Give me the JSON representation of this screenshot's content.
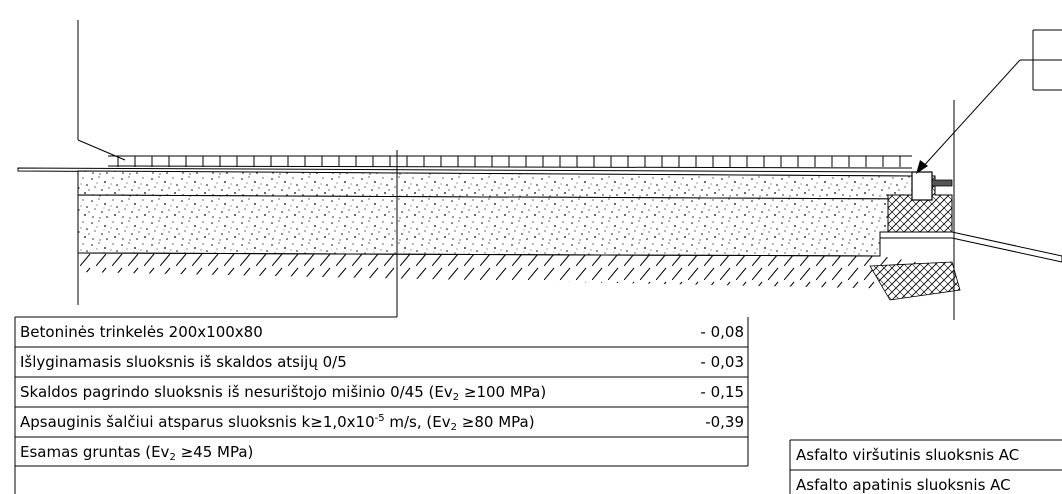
{
  "layers": [
    {
      "label": "Betoninės trinkelės 200x100x80",
      "value": "- 0,08"
    },
    {
      "label": "Išlyginamasis sluoksnis iš skaldos atsijų  0/5",
      "value": "- 0,03"
    },
    {
      "label_parts": {
        "pre": "Skaldos pagrindo sluoksnis iš nesurištojo mišinio 0/45 (Ev",
        "sub": "2",
        "post": " ≥100 MPa)"
      },
      "value": "- 0,15"
    },
    {
      "label_parts": {
        "pre": "Apsauginis šalčiui atsparus sluoksnis k≥1,0x10",
        "sup": "-5",
        "mid": " m/s, (Ev",
        "sub": "2",
        "post": " ≥80 MPa)"
      },
      "value": "-0,39"
    },
    {
      "label_parts": {
        "pre": "Esamas gruntas (Ev",
        "sub": "2",
        "post": " ≥45 MPa)"
      },
      "value": ""
    }
  ],
  "asphalt_layers": [
    {
      "label": "Asfalto viršutinis sluoksnis AC"
    },
    {
      "label": "Asfalto apatinis sluoksnis AC"
    }
  ]
}
